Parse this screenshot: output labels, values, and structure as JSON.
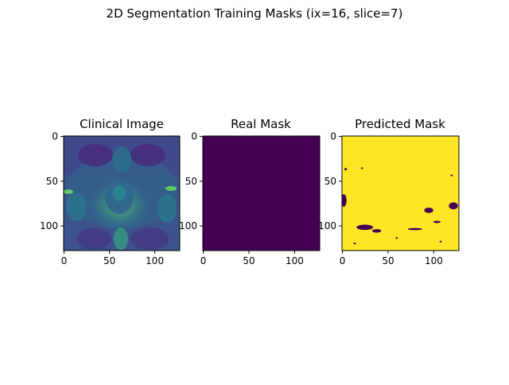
{
  "figure": {
    "suptitle": "2D Segmentation Training Masks (ix=16, slice=7)"
  },
  "colors": {
    "viridis_dark": "#440154",
    "viridis_yellow": "#fde725",
    "image_dark": "#3b528b",
    "image_teal": "#21918c",
    "image_green": "#5ec962"
  },
  "chart_data": [
    {
      "type": "heatmap",
      "title": "Clinical Image",
      "xlim": [
        0,
        127
      ],
      "ylim": [
        127,
        0
      ],
      "xticks": [
        0,
        50,
        100
      ],
      "yticks": [
        0,
        50,
        100
      ],
      "colormap": "viridis",
      "content": "grayscale MRI slice rendered in viridis"
    },
    {
      "type": "heatmap",
      "title": "Real Mask",
      "xlim": [
        0,
        127
      ],
      "ylim": [
        127,
        0
      ],
      "xticks": [
        0,
        50,
        100
      ],
      "yticks": [
        0,
        50,
        100
      ],
      "colormap": "viridis",
      "uniform_value": 0
    },
    {
      "type": "heatmap",
      "title": "Predicted Mask",
      "xlim": [
        0,
        127
      ],
      "ylim": [
        127,
        0
      ],
      "xticks": [
        0,
        50,
        100
      ],
      "yticks": [
        0,
        50,
        100
      ],
      "colormap": "viridis",
      "background_value": 1,
      "dark_regions": [
        {
          "x": 2,
          "y": 72,
          "rx": 3,
          "ry": 7
        },
        {
          "x": 25,
          "y": 102,
          "rx": 9,
          "ry": 3
        },
        {
          "x": 38,
          "y": 106,
          "rx": 5,
          "ry": 2
        },
        {
          "x": 95,
          "y": 83,
          "rx": 5,
          "ry": 3
        },
        {
          "x": 122,
          "y": 78,
          "rx": 5,
          "ry": 4
        },
        {
          "x": 80,
          "y": 104,
          "rx": 8,
          "ry": 1.2
        },
        {
          "x": 104,
          "y": 96,
          "rx": 4,
          "ry": 1.2
        },
        {
          "x": 22,
          "y": 36,
          "rx": 1.2,
          "ry": 1
        },
        {
          "x": 4,
          "y": 37,
          "rx": 1.5,
          "ry": 1.2
        },
        {
          "x": 120,
          "y": 44,
          "rx": 1.2,
          "ry": 1
        },
        {
          "x": 14,
          "y": 120,
          "rx": 1.2,
          "ry": 1
        },
        {
          "x": 108,
          "y": 118,
          "rx": 1.2,
          "ry": 1
        },
        {
          "x": 60,
          "y": 114,
          "rx": 1.2,
          "ry": 1
        }
      ]
    }
  ]
}
